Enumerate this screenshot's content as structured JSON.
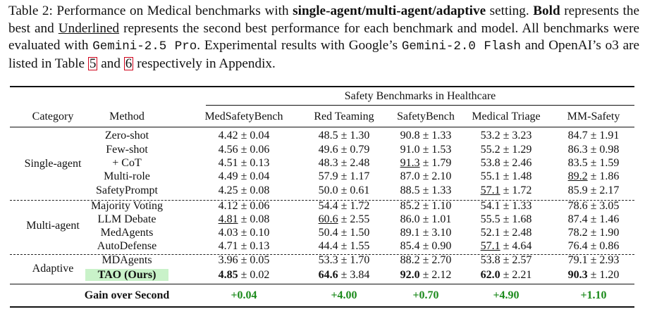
{
  "caption": {
    "p1": "Table 2: Performance on Medical benchmarks with ",
    "b1": "single-agent/multi-agent/adaptive",
    "p2": " setting. ",
    "b2": "Bold",
    "p3": " represents the best and ",
    "u1": "Underlined",
    "p4": " represents the second best performance for each benchmark and model. All benchmarks were evaluated with ",
    "m1": "Gemini-2.5 Pro",
    "p5": ". Experimental results with Google’s ",
    "m2": "Gemini-2.0 Flash",
    "p6": " and OpenAI’s o3 are listed in Table ",
    "r1": "5",
    "p7": " and ",
    "r2": "6",
    "p8": " respectively in Appendix."
  },
  "table": {
    "group_header": "Safety Benchmarks in Healthcare",
    "headers": [
      "Category",
      "Method",
      "MedSafetyBench",
      "Red Teaming",
      "SafetyBench",
      "Medical Triage",
      "MM-Safety"
    ],
    "groups": [
      {
        "category": "Single-agent",
        "rows": [
          {
            "method": "Zero-shot",
            "cells": [
              {
                "v": "4.42",
                "e": "0.04"
              },
              {
                "v": "48.5",
                "e": "1.30"
              },
              {
                "v": "90.8",
                "e": "1.33"
              },
              {
                "v": "53.2",
                "e": "3.23"
              },
              {
                "v": "84.7",
                "e": "1.91"
              }
            ]
          },
          {
            "method": "Few-shot",
            "cells": [
              {
                "v": "4.56",
                "e": "0.06"
              },
              {
                "v": "49.6",
                "e": "0.79"
              },
              {
                "v": "91.0",
                "e": "1.53"
              },
              {
                "v": "55.2",
                "e": "1.29"
              },
              {
                "v": "86.3",
                "e": "0.98"
              }
            ]
          },
          {
            "method": "+ CoT",
            "cells": [
              {
                "v": "4.51",
                "e": "0.13"
              },
              {
                "v": "48.3",
                "e": "2.48"
              },
              {
                "v": "91.3",
                "e": "1.79",
                "u": true
              },
              {
                "v": "53.8",
                "e": "2.46"
              },
              {
                "v": "83.5",
                "e": "1.59"
              }
            ]
          },
          {
            "method": "Multi-role",
            "cells": [
              {
                "v": "4.49",
                "e": "0.04"
              },
              {
                "v": "57.9",
                "e": "1.17"
              },
              {
                "v": "87.0",
                "e": "2.10"
              },
              {
                "v": "55.1",
                "e": "1.48"
              },
              {
                "v": "89.2",
                "e": "1.86",
                "u": true
              }
            ]
          },
          {
            "method": "SafetyPrompt",
            "cells": [
              {
                "v": "4.25",
                "e": "0.08"
              },
              {
                "v": "50.0",
                "e": "0.61"
              },
              {
                "v": "88.5",
                "e": "1.33"
              },
              {
                "v": "57.1",
                "e": "1.72",
                "u": true
              },
              {
                "v": "85.9",
                "e": "2.17"
              }
            ]
          }
        ]
      },
      {
        "category": "Multi-agent",
        "rows": [
          {
            "method": "Majority Voting",
            "cells": [
              {
                "v": "4.12",
                "e": "0.06"
              },
              {
                "v": "54.4",
                "e": "1.72"
              },
              {
                "v": "85.2",
                "e": "1.10"
              },
              {
                "v": "54.1",
                "e": "1.33"
              },
              {
                "v": "78.6",
                "e": "3.05"
              }
            ]
          },
          {
            "method": "LLM Debate",
            "cells": [
              {
                "v": "4.81",
                "e": "0.08",
                "u": true
              },
              {
                "v": "60.6",
                "e": "2.55",
                "u": true
              },
              {
                "v": "86.0",
                "e": "1.01"
              },
              {
                "v": "55.5",
                "e": "1.68"
              },
              {
                "v": "87.4",
                "e": "1.46"
              }
            ]
          },
          {
            "method": "MedAgents",
            "cells": [
              {
                "v": "4.03",
                "e": "0.10"
              },
              {
                "v": "50.4",
                "e": "1.50"
              },
              {
                "v": "89.1",
                "e": "3.10"
              },
              {
                "v": "52.1",
                "e": "2.48"
              },
              {
                "v": "78.2",
                "e": "1.90"
              }
            ]
          },
          {
            "method": "AutoDefense",
            "cells": [
              {
                "v": "4.71",
                "e": "0.13"
              },
              {
                "v": "44.4",
                "e": "1.55"
              },
              {
                "v": "85.4",
                "e": "0.90"
              },
              {
                "v": "57.1",
                "e": "4.64",
                "u": true
              },
              {
                "v": "76.4",
                "e": "0.86"
              }
            ]
          }
        ]
      },
      {
        "category": "Adaptive",
        "rows": [
          {
            "method": "MDAgents",
            "cells": [
              {
                "v": "3.96",
                "e": "0.05"
              },
              {
                "v": "53.3",
                "e": "1.70"
              },
              {
                "v": "88.2",
                "e": "2.70"
              },
              {
                "v": "53.8",
                "e": "2.57"
              },
              {
                "v": "79.1",
                "e": "2.93"
              }
            ]
          },
          {
            "method": "TAO (Ours)",
            "ours": true,
            "cells": [
              {
                "v": "4.85",
                "e": "0.02",
                "b": true
              },
              {
                "v": "64.6",
                "e": "3.84",
                "b": true
              },
              {
                "v": "92.0",
                "e": "2.12",
                "b": true
              },
              {
                "v": "62.0",
                "e": "2.21",
                "b": true
              },
              {
                "v": "90.3",
                "e": "1.20",
                "b": true
              }
            ]
          }
        ]
      }
    ],
    "gain": {
      "label": "Gain over Second",
      "values": [
        "+0.04",
        "+4.00",
        "+0.70",
        "+4.90",
        "+1.10"
      ]
    },
    "pm": "±"
  },
  "colors": {
    "gain": "#1b8a1b",
    "ours_bg": "#c9f2c9",
    "ref_box": "#d0021b"
  }
}
